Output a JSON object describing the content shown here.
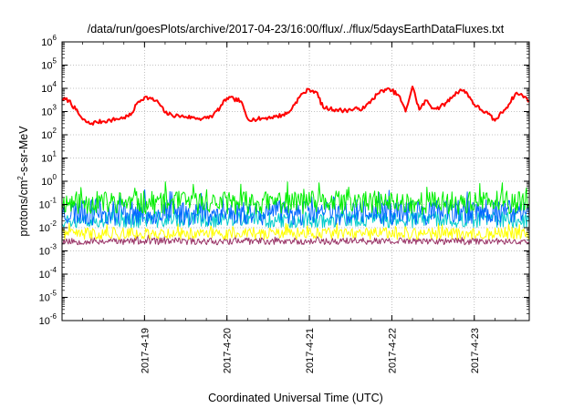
{
  "chart_data": {
    "type": "line",
    "title": "/data/run/goesPlots/archive/2017-04-23/16:00/flux/../flux/5daysEarthDataFluxes.txt",
    "xlabel": "Coordinated Universal Time (UTC)",
    "ylabel_parts": [
      "protons/cm",
      "2",
      "-s-sr-MeV"
    ],
    "y_scale": "log",
    "ylim": [
      1e-06,
      1000000.0
    ],
    "y_ticks": [
      {
        "base": "10",
        "exp": "-6",
        "value": 1e-06
      },
      {
        "base": "10",
        "exp": "-5",
        "value": 1e-05
      },
      {
        "base": "10",
        "exp": "-4",
        "value": 0.0001
      },
      {
        "base": "10",
        "exp": "-3",
        "value": 0.001
      },
      {
        "base": "10",
        "exp": "-2",
        "value": 0.01
      },
      {
        "base": "10",
        "exp": "-1",
        "value": 0.1
      },
      {
        "base": "10",
        "exp": "0",
        "value": 1
      },
      {
        "base": "10",
        "exp": "1",
        "value": 10
      },
      {
        "base": "10",
        "exp": "2",
        "value": 100
      },
      {
        "base": "10",
        "exp": "3",
        "value": 1000
      },
      {
        "base": "10",
        "exp": "4",
        "value": 10000
      },
      {
        "base": "10",
        "exp": "5",
        "value": 100000
      },
      {
        "base": "10",
        "exp": "6",
        "value": 1000000
      }
    ],
    "xlim": [
      "2017-04-18T00:00",
      "2017-04-23T16:00"
    ],
    "x_ticks": [
      "2017-4-19",
      "2017-4-20",
      "2017-4-21",
      "2017-4-22",
      "2017-4-23"
    ],
    "x_tick_dates": [
      "2017-04-19T00:00",
      "2017-04-20T00:00",
      "2017-04-21T00:00",
      "2017-04-22T00:00",
      "2017-04-23T00:00"
    ],
    "grid": true,
    "legend": "none",
    "series": [
      {
        "color": "#ff0000",
        "line_width": 2,
        "points": [
          [
            "2017-04-18T00:00",
            3500
          ],
          [
            "2017-04-18T02:00",
            3000
          ],
          [
            "2017-04-18T04:00",
            1200
          ],
          [
            "2017-04-18T06:00",
            450
          ],
          [
            "2017-04-18T08:00",
            300
          ],
          [
            "2017-04-18T10:00",
            350
          ],
          [
            "2017-04-18T12:00",
            380
          ],
          [
            "2017-04-18T14:00",
            420
          ],
          [
            "2017-04-18T16:00",
            480
          ],
          [
            "2017-04-18T18:00",
            550
          ],
          [
            "2017-04-18T20:00",
            700
          ],
          [
            "2017-04-18T22:00",
            2500
          ],
          [
            "2017-04-19T00:00",
            4200
          ],
          [
            "2017-04-19T02:00",
            3500
          ],
          [
            "2017-04-19T04:00",
            2500
          ],
          [
            "2017-04-19T06:00",
            900
          ],
          [
            "2017-04-19T08:00",
            700
          ],
          [
            "2017-04-19T10:00",
            650
          ],
          [
            "2017-04-19T12:00",
            600
          ],
          [
            "2017-04-19T14:00",
            550
          ],
          [
            "2017-04-19T16:00",
            500
          ],
          [
            "2017-04-19T18:00",
            520
          ],
          [
            "2017-04-19T20:00",
            700
          ],
          [
            "2017-04-19T22:00",
            1500
          ],
          [
            "2017-04-20T00:00",
            3800
          ],
          [
            "2017-04-20T02:00",
            3500
          ],
          [
            "2017-04-20T04:00",
            2800
          ],
          [
            "2017-04-20T06:00",
            500
          ],
          [
            "2017-04-20T08:00",
            450
          ],
          [
            "2017-04-20T10:00",
            500
          ],
          [
            "2017-04-20T12:00",
            550
          ],
          [
            "2017-04-20T14:00",
            600
          ],
          [
            "2017-04-20T16:00",
            700
          ],
          [
            "2017-04-20T18:00",
            900
          ],
          [
            "2017-04-20T20:00",
            2500
          ],
          [
            "2017-04-20T22:00",
            6000
          ],
          [
            "2017-04-21T00:00",
            9000
          ],
          [
            "2017-04-21T02:00",
            7000
          ],
          [
            "2017-04-21T04:00",
            1500
          ],
          [
            "2017-04-21T06:00",
            1300
          ],
          [
            "2017-04-21T08:00",
            1200
          ],
          [
            "2017-04-21T10:00",
            1100
          ],
          [
            "2017-04-21T12:00",
            1200
          ],
          [
            "2017-04-21T14:00",
            1300
          ],
          [
            "2017-04-21T16:00",
            1400
          ],
          [
            "2017-04-21T18:00",
            3000
          ],
          [
            "2017-04-21T20:00",
            6000
          ],
          [
            "2017-04-21T22:00",
            9000
          ],
          [
            "2017-04-22T00:00",
            8000
          ],
          [
            "2017-04-22T02:00",
            5000
          ],
          [
            "2017-04-22T04:00",
            1000
          ],
          [
            "2017-04-22T06:00",
            12000
          ],
          [
            "2017-04-22T08:00",
            1200
          ],
          [
            "2017-04-22T10:00",
            3000
          ],
          [
            "2017-04-22T12:00",
            1400
          ],
          [
            "2017-04-22T14:00",
            1500
          ],
          [
            "2017-04-22T16:00",
            2500
          ],
          [
            "2017-04-22T18:00",
            5000
          ],
          [
            "2017-04-22T20:00",
            9000
          ],
          [
            "2017-04-22T22:00",
            6000
          ],
          [
            "2017-04-23T00:00",
            2000
          ],
          [
            "2017-04-23T02:00",
            1200
          ],
          [
            "2017-04-23T04:00",
            800
          ],
          [
            "2017-04-23T06:00",
            400
          ],
          [
            "2017-04-23T08:00",
            900
          ],
          [
            "2017-04-23T10:00",
            2000
          ],
          [
            "2017-04-23T12:00",
            6000
          ],
          [
            "2017-04-23T14:00",
            5000
          ],
          [
            "2017-04-23T16:00",
            3000
          ]
        ]
      },
      {
        "color": "#00ee00",
        "base": 0.12,
        "spread": 0.5,
        "seed": 11
      },
      {
        "color": "#0066ff",
        "base": 0.045,
        "spread": 0.55,
        "seed": 23
      },
      {
        "color": "#00cccc",
        "base": 0.022,
        "spread": 0.35,
        "seed": 37
      },
      {
        "color": "#ffff00",
        "base": 0.0055,
        "spread": 0.25,
        "seed": 41
      },
      {
        "color": "#993366",
        "base": 0.0026,
        "spread": 0.15,
        "seed": 53
      }
    ]
  }
}
